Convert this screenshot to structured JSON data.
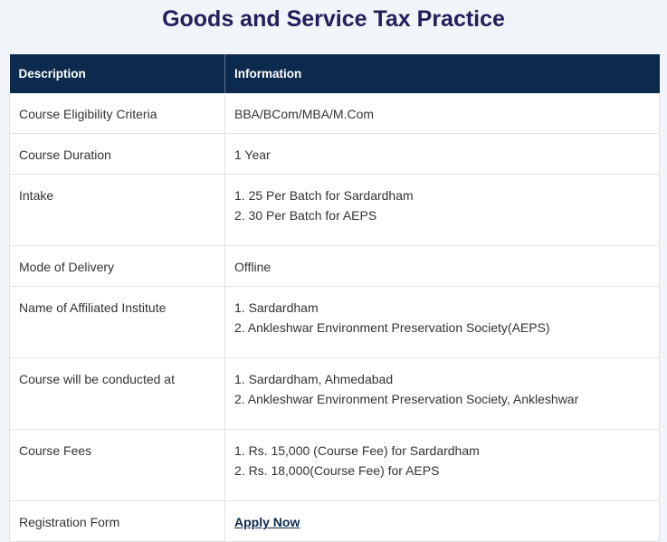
{
  "page": {
    "title": "Goods and Service Tax Practice"
  },
  "table": {
    "headers": [
      "Description",
      "Information"
    ],
    "rows": [
      {
        "label": "Course Eligibility Criteria",
        "lines": [
          "BBA/BCom/MBA/M.Com"
        ]
      },
      {
        "label": "Course Duration",
        "lines": [
          "1 Year"
        ]
      },
      {
        "label": "Intake",
        "lines": [
          "1. 25 Per Batch for Sardardham",
          "2. 30 Per Batch for AEPS"
        ]
      },
      {
        "label": "Mode of Delivery",
        "lines": [
          "Offline"
        ]
      },
      {
        "label": "Name of Affiliated Institute",
        "lines": [
          "1. Sardardham",
          "2. Ankleshwar Environment Preservation Society(AEPS)"
        ]
      },
      {
        "label": "Course will be conducted at",
        "lines": [
          "1. Sardardham, Ahmedabad",
          "2. Ankleshwar Environment Preservation Society, Ankleshwar"
        ]
      },
      {
        "label": "Course Fees",
        "lines": [
          "1. Rs. 15,000 (Course Fee) for Sardardham",
          "2. Rs. 18,000(Course Fee) for AEPS"
        ]
      },
      {
        "label": "Registration Form",
        "link": "Apply Now"
      }
    ]
  },
  "colors": {
    "title": "#22205c",
    "header_bg": "#0c2a4d",
    "page_bg": "#f1f4f8"
  }
}
